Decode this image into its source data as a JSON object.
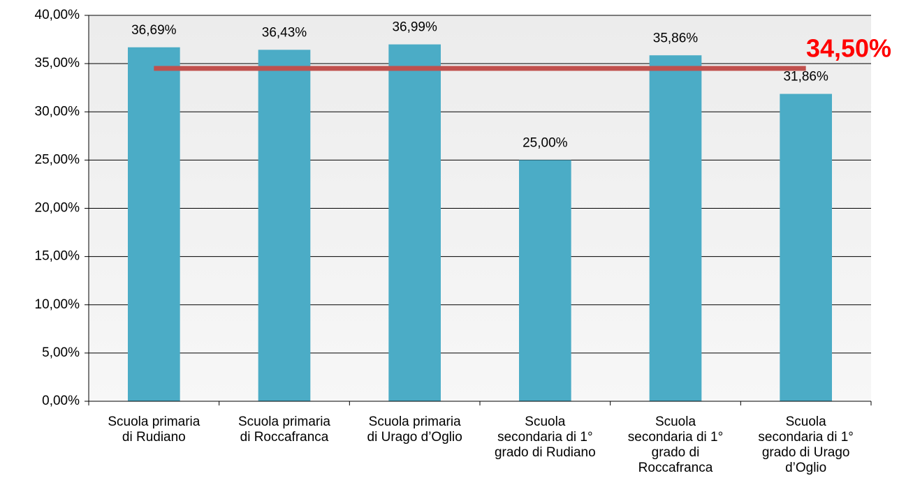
{
  "chart_data": {
    "type": "bar",
    "categories": [
      [
        "Scuola primaria",
        "di Rudiano"
      ],
      [
        "Scuola primaria",
        "di Roccafranca"
      ],
      [
        "Scuola primaria",
        "di Urago d’Oglio"
      ],
      [
        "Scuola",
        "secondaria di 1°",
        "grado di Rudiano"
      ],
      [
        "Scuola",
        "secondaria di 1°",
        "grado di",
        "Roccafranca"
      ],
      [
        "Scuola",
        "secondaria di 1°",
        "grado di Urago",
        "d’Oglio"
      ]
    ],
    "values": [
      36.69,
      36.43,
      36.99,
      25.0,
      35.86,
      31.86
    ],
    "value_labels": [
      "36,69%",
      "36,43%",
      "36,99%",
      "25,00%",
      "35,86%",
      "31,86%"
    ],
    "color": "#4bacc6",
    "ylim": [
      0,
      40
    ],
    "yticks": [
      {
        "value": 0,
        "label": "0,00%"
      },
      {
        "value": 5,
        "label": "5,00%"
      },
      {
        "value": 10,
        "label": "10,00%"
      },
      {
        "value": 15,
        "label": "15,00%"
      },
      {
        "value": 20,
        "label": "20,00%"
      },
      {
        "value": 25,
        "label": "25,00%"
      },
      {
        "value": 30,
        "label": "30,00%"
      },
      {
        "value": 35,
        "label": "35,00%"
      },
      {
        "value": 40,
        "label": "40,00%"
      }
    ],
    "grid": true,
    "reference_line": {
      "value": 34.5,
      "label": "34,50%",
      "color": "#c0504d",
      "label_color": "#ff0000"
    }
  }
}
